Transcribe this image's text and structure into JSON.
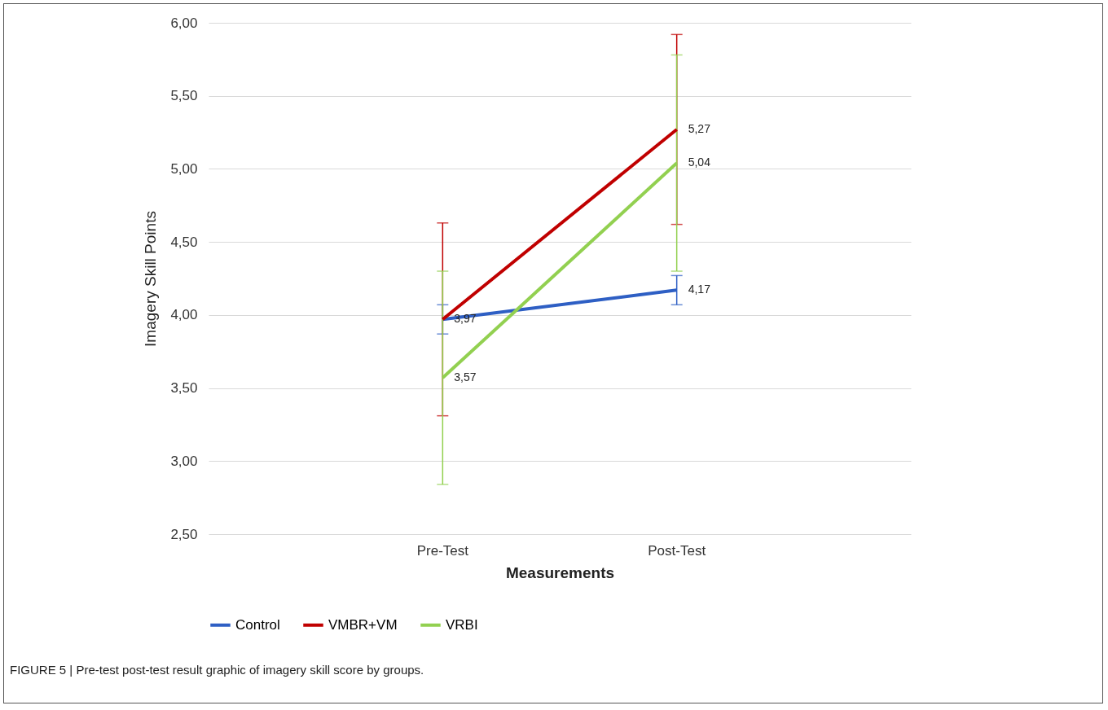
{
  "chart_data": {
    "type": "line",
    "xlabel": "Measurements",
    "ylabel": "Imagery Skill Points",
    "categories": [
      "Pre-Test",
      "Post-Test"
    ],
    "series": [
      {
        "name": "Control",
        "color": "#2e5fc4",
        "values": [
          3.97,
          4.17
        ],
        "errors": [
          0.1,
          0.1
        ],
        "value_labels": [
          "3,97",
          "4,17"
        ]
      },
      {
        "name": "VMBR+VM",
        "color": "#c00000",
        "values": [
          3.97,
          5.27
        ],
        "errors": [
          0.66,
          0.65
        ],
        "value_labels": [
          null,
          "5,27"
        ]
      },
      {
        "name": "VRBI",
        "color": "#92d050",
        "values": [
          3.57,
          5.04
        ],
        "errors": [
          0.73,
          0.74
        ],
        "value_labels": [
          "3,57",
          "5,04"
        ]
      }
    ],
    "ylim": [
      2.5,
      6
    ],
    "yticks": [
      {
        "value": 2.5,
        "label": "2,50"
      },
      {
        "value": 3,
        "label": "3,00"
      },
      {
        "value": 3.5,
        "label": "3,50"
      },
      {
        "value": 4,
        "label": "4,00"
      },
      {
        "value": 4.5,
        "label": "4,50"
      },
      {
        "value": 5,
        "label": "5,00"
      },
      {
        "value": 5.5,
        "label": "5,50"
      },
      {
        "value": 6,
        "label": "6,00"
      }
    ],
    "grid": "y",
    "legend": "bottom",
    "marker": "none",
    "line_style": "solid",
    "annotations": [
      "FIGURE 5 | Pre-test post-test result graphic of imagery skill score by groups."
    ]
  }
}
